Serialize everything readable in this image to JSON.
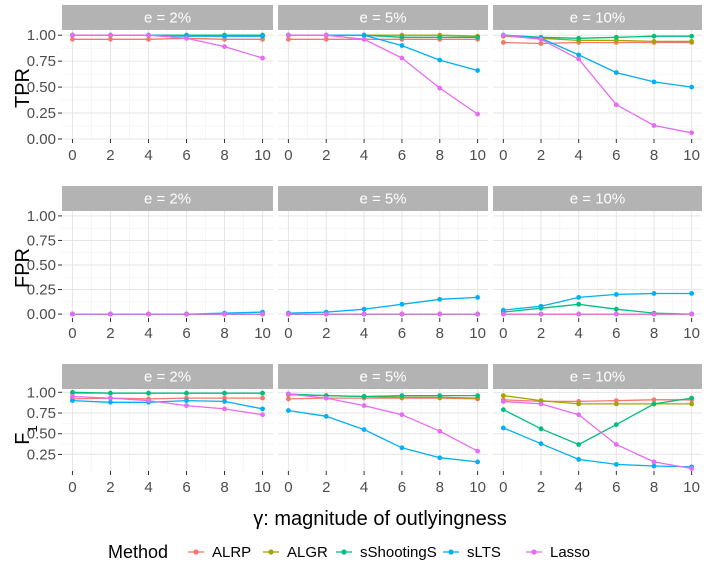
{
  "chart_data": {
    "type": "line",
    "xlabel": "γ: magnitude of outlyingness",
    "legend": {
      "title": "Method",
      "position": "bottom",
      "series": [
        {
          "name": "ALRP",
          "color": "#F8766D"
        },
        {
          "name": "ALGR",
          "color": "#A3A500"
        },
        {
          "name": "sShootingS",
          "color": "#00BF7D"
        },
        {
          "name": "sLTS",
          "color": "#00B0F6"
        },
        {
          "name": "Lasso",
          "color": "#E76BF3"
        }
      ]
    },
    "x": [
      0,
      2,
      4,
      6,
      8,
      10
    ],
    "x_ticks": [
      "0",
      "2",
      "4",
      "6",
      "8",
      "10"
    ],
    "columns": [
      "e = 2%",
      "e = 5%",
      "e = 10%"
    ],
    "rows": [
      {
        "label": "TPR",
        "label_sub": "",
        "ylim": [
          0,
          1.05
        ],
        "y_ticks": [
          0,
          0.25,
          0.5,
          0.75,
          1.0
        ],
        "y_tick_labels": [
          "0.00",
          "0.25",
          "0.50",
          "0.75",
          "1.00"
        ],
        "panels": [
          {
            "ALRP": [
              0.96,
              0.96,
              0.96,
              0.97,
              0.96,
              0.96
            ],
            "ALGR": [
              1.0,
              1.0,
              1.0,
              1.0,
              1.0,
              1.0
            ],
            "sShootingS": [
              1.0,
              1.0,
              1.0,
              1.0,
              1.0,
              1.0
            ],
            "sLTS": [
              1.0,
              1.0,
              1.0,
              0.99,
              0.99,
              0.99
            ],
            "Lasso": [
              1.0,
              1.0,
              1.0,
              0.97,
              0.89,
              0.78
            ]
          },
          {
            "ALRP": [
              0.96,
              0.96,
              0.96,
              0.96,
              0.96,
              0.96
            ],
            "ALGR": [
              1.0,
              1.0,
              1.0,
              1.0,
              1.0,
              0.99
            ],
            "sShootingS": [
              1.0,
              1.0,
              1.0,
              0.98,
              0.98,
              0.98
            ],
            "sLTS": [
              1.0,
              1.0,
              1.0,
              0.9,
              0.76,
              0.66
            ],
            "Lasso": [
              1.0,
              1.0,
              0.96,
              0.78,
              0.49,
              0.24
            ]
          },
          {
            "ALRP": [
              0.93,
              0.92,
              0.93,
              0.93,
              0.93,
              0.93
            ],
            "ALGR": [
              0.99,
              0.97,
              0.95,
              0.95,
              0.94,
              0.94
            ],
            "sShootingS": [
              1.0,
              0.98,
              0.97,
              0.98,
              0.99,
              0.99
            ],
            "sLTS": [
              1.0,
              0.97,
              0.81,
              0.64,
              0.55,
              0.5
            ],
            "Lasso": [
              1.0,
              0.96,
              0.77,
              0.33,
              0.13,
              0.06
            ]
          }
        ]
      },
      {
        "label": "FPR",
        "label_sub": "",
        "ylim": [
          -0.04,
          1.05
        ],
        "y_ticks": [
          0,
          0.25,
          0.5,
          0.75,
          1.0
        ],
        "y_tick_labels": [
          "0.00",
          "0.25",
          "0.50",
          "0.75",
          "1.00"
        ],
        "panels": [
          {
            "ALRP": [
              0.0,
              0.0,
              0.0,
              0.0,
              0.0,
              0.0
            ],
            "ALGR": [
              0.0,
              0.0,
              0.0,
              0.0,
              0.0,
              0.0
            ],
            "sShootingS": [
              0.0,
              0.0,
              0.0,
              0.0,
              0.0,
              0.0
            ],
            "sLTS": [
              0.0,
              0.0,
              0.0,
              0.0,
              0.01,
              0.02
            ],
            "Lasso": [
              0.0,
              0.0,
              0.0,
              0.0,
              0.0,
              0.0
            ]
          },
          {
            "ALRP": [
              0.0,
              0.0,
              0.0,
              0.0,
              0.0,
              0.0
            ],
            "ALGR": [
              0.0,
              0.0,
              0.0,
              0.0,
              0.0,
              0.0
            ],
            "sShootingS": [
              0.0,
              0.0,
              0.0,
              0.0,
              0.0,
              0.0
            ],
            "sLTS": [
              0.01,
              0.02,
              0.05,
              0.1,
              0.15,
              0.17
            ],
            "Lasso": [
              0.0,
              0.0,
              0.0,
              0.0,
              0.0,
              0.0
            ]
          },
          {
            "ALRP": [
              0.0,
              0.0,
              0.0,
              0.0,
              0.0,
              0.0
            ],
            "ALGR": [
              0.0,
              0.0,
              0.0,
              0.0,
              0.0,
              0.0
            ],
            "sShootingS": [
              0.02,
              0.06,
              0.1,
              0.05,
              0.01,
              0.0
            ],
            "sLTS": [
              0.04,
              0.08,
              0.17,
              0.2,
              0.21,
              0.21
            ],
            "Lasso": [
              0.0,
              0.0,
              0.0,
              0.0,
              0.0,
              0.0
            ]
          }
        ]
      },
      {
        "label": "F",
        "label_sub": "1",
        "ylim": [
          0.05,
          1.04
        ],
        "y_ticks": [
          0.25,
          0.5,
          0.75,
          1.0
        ],
        "y_tick_labels": [
          "0.25",
          "0.50",
          "0.75",
          "1.00"
        ],
        "panels": [
          {
            "ALRP": [
              0.92,
              0.93,
              0.92,
              0.93,
              0.93,
              0.93
            ],
            "ALGR": [
              0.99,
              0.99,
              0.99,
              0.99,
              0.99,
              0.99
            ],
            "sShootingS": [
              1.0,
              0.99,
              0.99,
              0.99,
              0.99,
              0.99
            ],
            "sLTS": [
              0.9,
              0.88,
              0.88,
              0.9,
              0.89,
              0.8
            ],
            "Lasso": [
              0.95,
              0.93,
              0.9,
              0.84,
              0.8,
              0.73
            ]
          },
          {
            "ALRP": [
              0.92,
              0.93,
              0.93,
              0.93,
              0.93,
              0.92
            ],
            "ALGR": [
              0.97,
              0.96,
              0.95,
              0.94,
              0.94,
              0.93
            ],
            "sShootingS": [
              0.98,
              0.96,
              0.95,
              0.96,
              0.96,
              0.96
            ],
            "sLTS": [
              0.78,
              0.71,
              0.55,
              0.33,
              0.21,
              0.16
            ],
            "Lasso": [
              0.98,
              0.93,
              0.84,
              0.73,
              0.53,
              0.29
            ]
          },
          {
            "ALRP": [
              0.91,
              0.89,
              0.89,
              0.9,
              0.91,
              0.91
            ],
            "ALGR": [
              0.96,
              0.9,
              0.86,
              0.86,
              0.86,
              0.86
            ],
            "sShootingS": [
              0.79,
              0.56,
              0.37,
              0.61,
              0.86,
              0.93
            ],
            "sLTS": [
              0.57,
              0.38,
              0.19,
              0.13,
              0.11,
              0.1
            ],
            "Lasso": [
              0.89,
              0.86,
              0.73,
              0.37,
              0.16,
              0.08
            ]
          }
        ]
      }
    ]
  }
}
